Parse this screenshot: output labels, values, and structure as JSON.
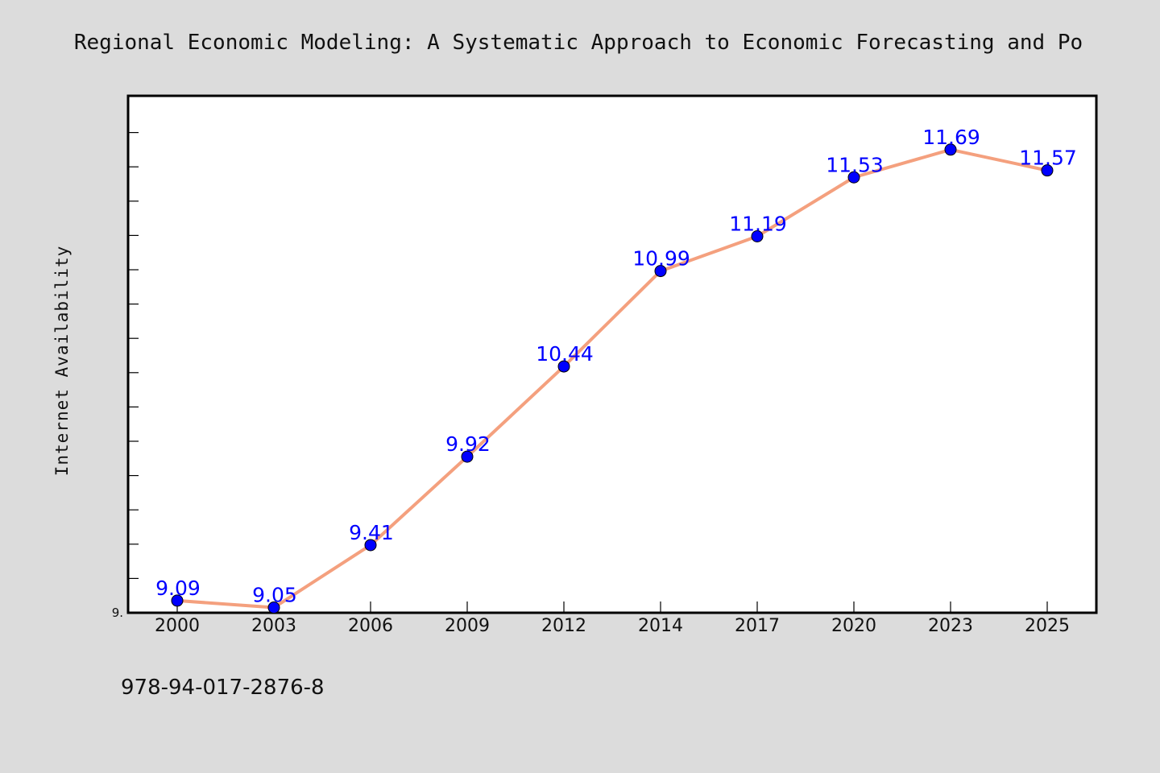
{
  "colors": {
    "background": "#dcdcdc",
    "plot_background": "#ffffff",
    "line": "#f4a07e",
    "marker": "#0000ff",
    "label": "#0000ff"
  },
  "footer": {
    "isbn": "978-94-017-2876-8"
  },
  "chart_data": {
    "type": "line",
    "title": "Regional Economic Modeling: A Systematic Approach to Economic Forecasting and Po",
    "xlabel": "",
    "ylabel": "Internet Availability",
    "categories": [
      "2000",
      "2003",
      "2006",
      "2009",
      "2012",
      "2014",
      "2017",
      "2020",
      "2023",
      "2025"
    ],
    "series": [
      {
        "values": [
          9.09,
          9.05,
          9.41,
          9.92,
          10.44,
          10.99,
          11.19,
          11.53,
          11.69,
          11.57
        ],
        "labels": [
          "9.09",
          "9.05",
          "9.41",
          "9.92",
          "10.44",
          "10.99",
          "11.19",
          "11.53",
          "11.69",
          "11.57"
        ]
      }
    ],
    "ylim": [
      9.02,
      12.0
    ],
    "ytick_labels": [
      "9."
    ],
    "grid": false,
    "legend": "none"
  }
}
